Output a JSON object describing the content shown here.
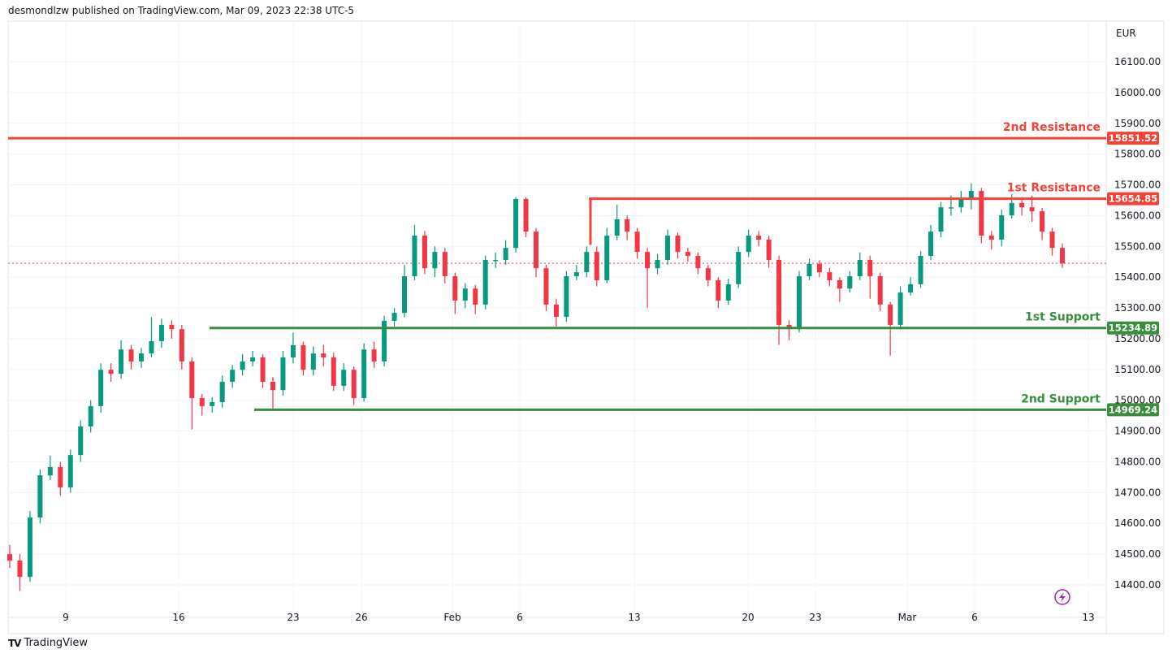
{
  "header": {
    "published": "desmondlzw published on TradingView.com, Mar 09, 2023 22:38 UTC-5"
  },
  "footer": {
    "brand": "TradingView",
    "logo": "TV"
  },
  "colors": {
    "up": "#089981",
    "down": "#f23645",
    "resistance": "#f44336",
    "support": "#388e3c",
    "grid": "#f0f3fa",
    "text": "#131722",
    "lightning": "#9c27b0"
  },
  "chart_data": {
    "type": "candlestick",
    "currency": "EUR",
    "ylim": [
      14350,
      16150
    ],
    "y_ticks": [
      14400,
      14500,
      14600,
      14700,
      14800,
      14900,
      15000,
      15100,
      15200,
      15300,
      15400,
      15500,
      15600,
      15700,
      15800,
      15900,
      16000,
      16100
    ],
    "x_ticks": [
      "9",
      "16",
      "23",
      "26",
      "Feb",
      "6",
      "13",
      "20",
      "23",
      "Mar",
      "6",
      "13"
    ],
    "grid": true,
    "last_price": 15445,
    "levels": [
      {
        "label": "2nd Resistance",
        "value": 15851.52,
        "price_label": "15851.52",
        "type": "resistance"
      },
      {
        "label": "1st Resistance",
        "value": 15654.85,
        "price_label": "15654.85",
        "type": "resistance"
      },
      {
        "label": "1st Support",
        "value": 15234.89,
        "price_label": "15234.89",
        "type": "support"
      },
      {
        "label": "2nd Support",
        "value": 14969.24,
        "price_label": "14969.24",
        "type": "support"
      }
    ],
    "candles": [
      [
        14500,
        14530,
        14455,
        14479
      ],
      [
        14479,
        14500,
        14380,
        14426
      ],
      [
        14426,
        14640,
        14410,
        14619
      ],
      [
        14619,
        14775,
        14600,
        14756
      ],
      [
        14756,
        14820,
        14740,
        14783
      ],
      [
        14783,
        14800,
        14690,
        14717
      ],
      [
        14717,
        14840,
        14700,
        14822
      ],
      [
        14822,
        14935,
        14800,
        14915
      ],
      [
        14915,
        15000,
        14895,
        14981
      ],
      [
        14981,
        15120,
        14960,
        15099
      ],
      [
        15099,
        15120,
        15060,
        15086
      ],
      [
        15086,
        15195,
        15070,
        15165
      ],
      [
        15165,
        15180,
        15100,
        15126
      ],
      [
        15126,
        15170,
        15105,
        15152
      ],
      [
        15152,
        15270,
        15140,
        15192
      ],
      [
        15192,
        15265,
        15170,
        15245
      ],
      [
        15245,
        15260,
        15200,
        15231
      ],
      [
        15231,
        15245,
        15100,
        15126
      ],
      [
        15126,
        15140,
        14905,
        15007
      ],
      [
        15007,
        15020,
        14950,
        14981
      ],
      [
        14981,
        15010,
        14960,
        14994
      ],
      [
        14994,
        15080,
        14975,
        15060
      ],
      [
        15060,
        15115,
        15040,
        15099
      ],
      [
        15099,
        15150,
        15080,
        15126
      ],
      [
        15126,
        15160,
        15110,
        15139
      ],
      [
        15139,
        15150,
        15040,
        15060
      ],
      [
        15060,
        15075,
        14970,
        15033
      ],
      [
        15033,
        15160,
        15015,
        15139
      ],
      [
        15139,
        15220,
        15120,
        15179
      ],
      [
        15179,
        15190,
        15080,
        15099
      ],
      [
        15099,
        15175,
        15080,
        15152
      ],
      [
        15152,
        15180,
        15110,
        15139
      ],
      [
        15139,
        15155,
        15030,
        15047
      ],
      [
        15047,
        15120,
        15030,
        15099
      ],
      [
        15099,
        15110,
        14985,
        15007
      ],
      [
        15007,
        15185,
        14995,
        15165
      ],
      [
        15165,
        15190,
        15105,
        15126
      ],
      [
        15126,
        15275,
        15110,
        15258
      ],
      [
        15258,
        15300,
        15240,
        15284
      ],
      [
        15284,
        15440,
        15270,
        15403
      ],
      [
        15403,
        15570,
        15390,
        15535
      ],
      [
        15535,
        15550,
        15410,
        15429
      ],
      [
        15429,
        15500,
        15400,
        15482
      ],
      [
        15482,
        15495,
        15380,
        15403
      ],
      [
        15403,
        15415,
        15280,
        15324
      ],
      [
        15324,
        15380,
        15300,
        15363
      ],
      [
        15363,
        15375,
        15280,
        15311
      ],
      [
        15311,
        15470,
        15295,
        15456
      ],
      [
        15456,
        15480,
        15430,
        15456
      ],
      [
        15456,
        15520,
        15440,
        15495
      ],
      [
        15495,
        15660,
        15480,
        15654
      ],
      [
        15654,
        15660,
        15530,
        15548
      ],
      [
        15548,
        15560,
        15400,
        15429
      ],
      [
        15429,
        15440,
        15290,
        15311
      ],
      [
        15311,
        15330,
        15240,
        15271
      ],
      [
        15271,
        15420,
        15255,
        15403
      ],
      [
        15403,
        15440,
        15390,
        15416
      ],
      [
        15416,
        15500,
        15400,
        15482
      ],
      [
        15482,
        15500,
        15370,
        15390
      ],
      [
        15390,
        15560,
        15380,
        15535
      ],
      [
        15535,
        15635,
        15520,
        15588
      ],
      [
        15588,
        15600,
        15520,
        15548
      ],
      [
        15548,
        15560,
        15460,
        15482
      ],
      [
        15482,
        15495,
        15300,
        15429
      ],
      [
        15429,
        15475,
        15410,
        15456
      ],
      [
        15456,
        15555,
        15440,
        15535
      ],
      [
        15535,
        15545,
        15460,
        15482
      ],
      [
        15482,
        15495,
        15450,
        15469
      ],
      [
        15469,
        15480,
        15410,
        15429
      ],
      [
        15429,
        15440,
        15370,
        15390
      ],
      [
        15390,
        15400,
        15300,
        15324
      ],
      [
        15324,
        15395,
        15310,
        15377
      ],
      [
        15377,
        15500,
        15365,
        15482
      ],
      [
        15482,
        15555,
        15465,
        15535
      ],
      [
        15535,
        15550,
        15500,
        15522
      ],
      [
        15522,
        15535,
        15430,
        15456
      ],
      [
        15456,
        15470,
        15180,
        15245
      ],
      [
        15245,
        15260,
        15195,
        15231
      ],
      [
        15231,
        15420,
        15220,
        15403
      ],
      [
        15403,
        15460,
        15390,
        15443
      ],
      [
        15443,
        15455,
        15400,
        15416
      ],
      [
        15416,
        15430,
        15370,
        15390
      ],
      [
        15390,
        15400,
        15320,
        15363
      ],
      [
        15363,
        15420,
        15350,
        15403
      ],
      [
        15403,
        15480,
        15390,
        15456
      ],
      [
        15456,
        15470,
        15330,
        15403
      ],
      [
        15403,
        15415,
        15290,
        15311
      ],
      [
        15311,
        15320,
        15145,
        15245
      ],
      [
        15245,
        15370,
        15230,
        15350
      ],
      [
        15350,
        15400,
        15340,
        15377
      ],
      [
        15377,
        15485,
        15365,
        15469
      ],
      [
        15469,
        15570,
        15455,
        15548
      ],
      [
        15548,
        15645,
        15530,
        15627
      ],
      [
        15627,
        15665,
        15600,
        15627
      ],
      [
        15627,
        15680,
        15610,
        15654
      ],
      [
        15654,
        15705,
        15620,
        15680
      ],
      [
        15680,
        15690,
        15510,
        15535
      ],
      [
        15535,
        15550,
        15490,
        15522
      ],
      [
        15522,
        15620,
        15500,
        15601
      ],
      [
        15601,
        15670,
        15590,
        15641
      ],
      [
        15641,
        15660,
        15600,
        15627
      ],
      [
        15627,
        15665,
        15580,
        15614
      ],
      [
        15614,
        15625,
        15520,
        15548
      ],
      [
        15548,
        15560,
        15470,
        15495
      ],
      [
        15495,
        15510,
        15430,
        15445
      ]
    ]
  }
}
